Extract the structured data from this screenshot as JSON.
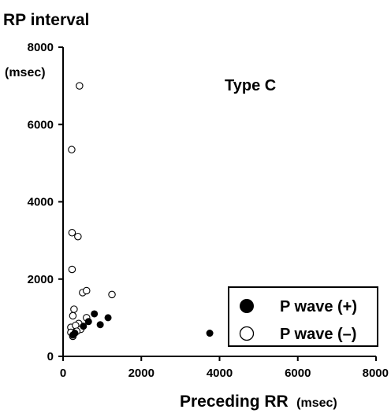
{
  "chart_data": {
    "type": "scatter",
    "ylabel": "RP interval",
    "ylabel_unit": "(msec)",
    "xlabel": "Preceding RR",
    "xlabel_unit": "(msec)",
    "annotation": "Type C",
    "xlim": [
      0,
      8000
    ],
    "ylim": [
      0,
      8000
    ],
    "x_ticks": [
      "0",
      "2000",
      "4000",
      "6000",
      "8000"
    ],
    "y_ticks": [
      "0",
      "2000",
      "4000",
      "6000",
      "8000"
    ],
    "grid": false,
    "legend_position": "bottom-right",
    "series": [
      {
        "name": "P wave (+)",
        "marker": "filled-circle",
        "color": "#000000",
        "points": [
          {
            "x": 250,
            "y": 550
          },
          {
            "x": 300,
            "y": 600
          },
          {
            "x": 520,
            "y": 780
          },
          {
            "x": 650,
            "y": 900
          },
          {
            "x": 800,
            "y": 1100
          },
          {
            "x": 950,
            "y": 820
          },
          {
            "x": 1150,
            "y": 1000
          },
          {
            "x": 3750,
            "y": 600
          }
        ]
      },
      {
        "name": "P wave (–)",
        "marker": "open-circle",
        "color": "#000000",
        "points": [
          {
            "x": 420,
            "y": 7000
          },
          {
            "x": 220,
            "y": 5350
          },
          {
            "x": 230,
            "y": 3200
          },
          {
            "x": 380,
            "y": 3100
          },
          {
            "x": 230,
            "y": 2250
          },
          {
            "x": 500,
            "y": 1650
          },
          {
            "x": 600,
            "y": 1700
          },
          {
            "x": 1250,
            "y": 1600
          },
          {
            "x": 280,
            "y": 1220
          },
          {
            "x": 250,
            "y": 1050
          },
          {
            "x": 600,
            "y": 1000
          },
          {
            "x": 400,
            "y": 850
          },
          {
            "x": 200,
            "y": 750
          },
          {
            "x": 320,
            "y": 800
          },
          {
            "x": 450,
            "y": 700
          },
          {
            "x": 200,
            "y": 620
          },
          {
            "x": 350,
            "y": 650
          },
          {
            "x": 250,
            "y": 520
          }
        ]
      }
    ]
  }
}
